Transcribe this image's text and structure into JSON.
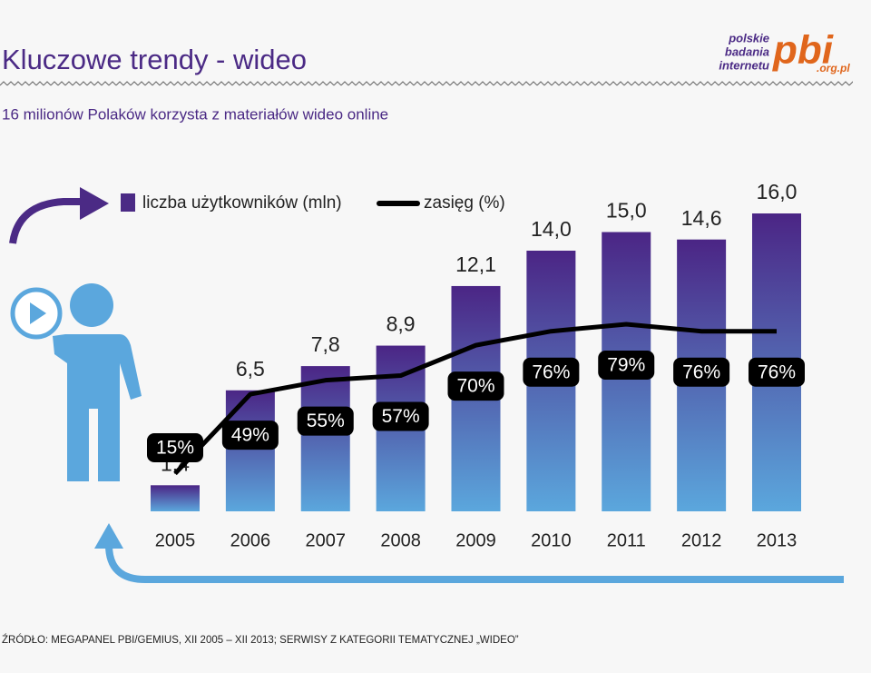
{
  "header": {
    "title": "Kluczowe trendy - wideo",
    "subtitle": "16 milionów Polaków korzysta z materiałów wideo online",
    "logo": {
      "line1": "polskie",
      "line2": "badania",
      "line3": "internetu",
      "mark": "pbi",
      "domain": ".org.pl"
    }
  },
  "chart_data": {
    "type": "bar",
    "categories": [
      "2005",
      "2006",
      "2007",
      "2008",
      "2009",
      "2010",
      "2011",
      "2012",
      "2013"
    ],
    "series": [
      {
        "name": "liczba użytkowników (mln)",
        "color": "#4b2a85",
        "values": [
          1.4,
          6.5,
          7.8,
          8.9,
          12.1,
          14.0,
          15.0,
          14.6,
          16.0
        ],
        "value_labels": [
          "1,4",
          "6,5",
          "7,8",
          "8,9",
          "12,1",
          "14,0",
          "15,0",
          "14,6",
          "16,0"
        ]
      },
      {
        "name": "zasięg (%)",
        "color": "#000000",
        "type": "line",
        "values": [
          15,
          49,
          55,
          57,
          70,
          76,
          79,
          76,
          76
        ],
        "value_labels": [
          "15%",
          "49%",
          "55%",
          "57%",
          "70%",
          "76%",
          "79%",
          "76%",
          "76%"
        ]
      }
    ]
  },
  "footer": {
    "source": "ŹRÓDŁO: MEGAPANEL PBI/GEMIUS, XII 2005 – XII 2013; SERWISY Z KATEGORII TEMATYCZNEJ „WIDEO”"
  }
}
